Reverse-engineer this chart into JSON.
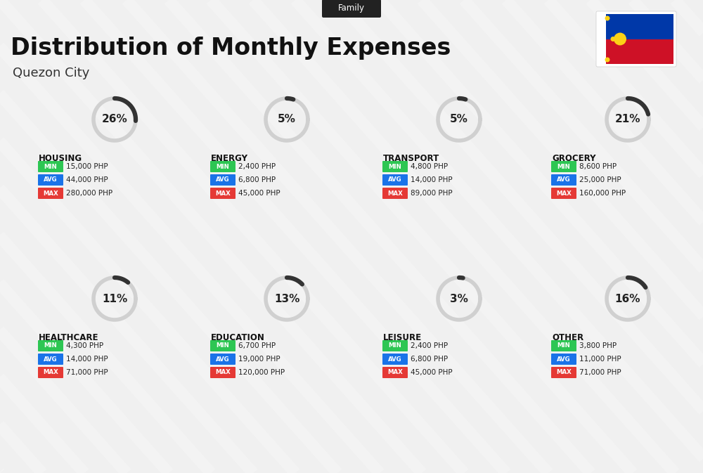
{
  "title": "Distribution of Monthly Expenses",
  "subtitle": "Quezon City",
  "tag": "Family",
  "background_color": "#f0f0f0",
  "categories": [
    {
      "name": "HOUSING",
      "pct": 26,
      "min": "15,000 PHP",
      "avg": "44,000 PHP",
      "max": "280,000 PHP",
      "row": 0,
      "col": 0
    },
    {
      "name": "ENERGY",
      "pct": 5,
      "min": "2,400 PHP",
      "avg": "6,800 PHP",
      "max": "45,000 PHP",
      "row": 0,
      "col": 1
    },
    {
      "name": "TRANSPORT",
      "pct": 5,
      "min": "4,800 PHP",
      "avg": "14,000 PHP",
      "max": "89,000 PHP",
      "row": 0,
      "col": 2
    },
    {
      "name": "GROCERY",
      "pct": 21,
      "min": "8,600 PHP",
      "avg": "25,000 PHP",
      "max": "160,000 PHP",
      "row": 0,
      "col": 3
    },
    {
      "name": "HEALTHCARE",
      "pct": 11,
      "min": "4,300 PHP",
      "avg": "14,000 PHP",
      "max": "71,000 PHP",
      "row": 1,
      "col": 0
    },
    {
      "name": "EDUCATION",
      "pct": 13,
      "min": "6,700 PHP",
      "avg": "19,000 PHP",
      "max": "120,000 PHP",
      "row": 1,
      "col": 1
    },
    {
      "name": "LEISURE",
      "pct": 3,
      "min": "2,400 PHP",
      "avg": "6,800 PHP",
      "max": "45,000 PHP",
      "row": 1,
      "col": 2
    },
    {
      "name": "OTHER",
      "pct": 16,
      "min": "3,800 PHP",
      "avg": "11,000 PHP",
      "max": "71,000 PHP",
      "row": 1,
      "col": 3
    }
  ],
  "min_color": "#2dc653",
  "avg_color": "#1a73e8",
  "max_color": "#e53935",
  "label_color": "#ffffff",
  "arc_color": "#333333",
  "arc_bg_color": "#d0d0d0"
}
